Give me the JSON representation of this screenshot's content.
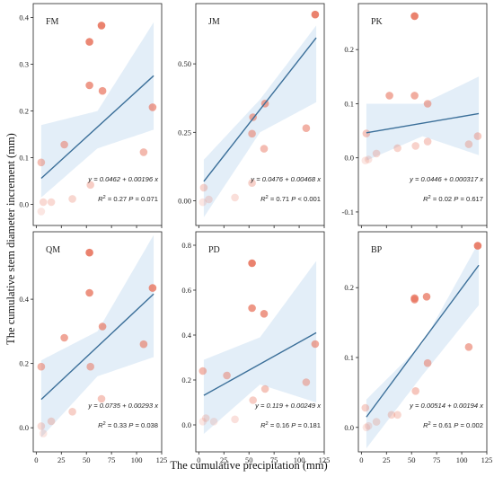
{
  "chart_data": {
    "type": "scatter",
    "xlabel": "The cumulative precipitation (mm)",
    "ylabel": "The cumulative stem diameter increment (mm)",
    "colors": {
      "point": "#e8745e",
      "band": "#a9cbe8",
      "line": "#3b6f99",
      "frame": "#222222"
    },
    "panels": [
      {
        "label": "FM",
        "xlim": [
          -3,
          125
        ],
        "ylim": [
          -0.045,
          0.43
        ],
        "xticks": [
          0,
          25,
          50,
          75,
          100,
          125
        ],
        "yticks": [
          0.0,
          0.1,
          0.2,
          0.3,
          0.4
        ],
        "ytick_labels": [
          "0.0",
          "0.1",
          "0.2",
          "0.3",
          "0.4"
        ],
        "show_xtick_labels": false,
        "points": [
          {
            "x": 5,
            "y": 0.09
          },
          {
            "x": 5,
            "y": -0.015
          },
          {
            "x": 7,
            "y": 0.005
          },
          {
            "x": 15,
            "y": 0.005
          },
          {
            "x": 28,
            "y": 0.128
          },
          {
            "x": 36,
            "y": 0.012
          },
          {
            "x": 53,
            "y": 0.348
          },
          {
            "x": 53,
            "y": 0.255
          },
          {
            "x": 54,
            "y": 0.042
          },
          {
            "x": 65,
            "y": 0.383
          },
          {
            "x": 66,
            "y": 0.243
          },
          {
            "x": 107,
            "y": 0.112
          },
          {
            "x": 116,
            "y": 0.208
          }
        ],
        "fit": {
          "intercept": 0.0462,
          "slope": 0.00196,
          "x_range": [
            5,
            117
          ],
          "ci_low": [
            0.015,
            0.12,
            0.16
          ],
          "ci_high": [
            0.17,
            0.2,
            0.39
          ]
        },
        "equation": "y = 0.0462 + 0.00196 x",
        "r2": "0.27",
        "p": "0.071"
      },
      {
        "label": "JM",
        "xlim": [
          -3,
          125
        ],
        "ylim": [
          -0.09,
          0.72
        ],
        "xticks": [
          0,
          25,
          50,
          75,
          100,
          125
        ],
        "yticks": [
          0.0,
          0.25,
          0.5
        ],
        "ytick_labels": [
          "0.00",
          "0.25",
          "0.50"
        ],
        "show_xtick_labels": false,
        "points": [
          {
            "x": 5,
            "y": 0.048
          },
          {
            "x": 4,
            "y": -0.005
          },
          {
            "x": 10,
            "y": 0.005
          },
          {
            "x": 36,
            "y": 0.012
          },
          {
            "x": 53,
            "y": 0.065
          },
          {
            "x": 53,
            "y": 0.245
          },
          {
            "x": 54,
            "y": 0.305
          },
          {
            "x": 65,
            "y": 0.19
          },
          {
            "x": 66,
            "y": 0.355
          },
          {
            "x": 107,
            "y": 0.265
          },
          {
            "x": 116,
            "y": 0.68
          }
        ],
        "fit": {
          "intercept": 0.0476,
          "slope": 0.00468,
          "x_range": [
            5,
            117
          ],
          "ci_low": [
            -0.06,
            0.25,
            0.36
          ],
          "ci_high": [
            0.15,
            0.37,
            0.64
          ]
        },
        "equation": "y = 0.0476 + 0.00468 x",
        "r2": "0.71",
        "p": "< 0.001"
      },
      {
        "label": "PK",
        "xlim": [
          -3,
          125
        ],
        "ylim": [
          -0.125,
          0.285
        ],
        "xticks": [
          0,
          25,
          50,
          75,
          100,
          125
        ],
        "yticks": [
          -0.1,
          0.0,
          0.1,
          0.2
        ],
        "ytick_labels": [
          "-0.1",
          "0.0",
          "0.1",
          "0.2"
        ],
        "show_xtick_labels": false,
        "points": [
          {
            "x": 5,
            "y": 0.045
          },
          {
            "x": 4,
            "y": -0.005
          },
          {
            "x": 7,
            "y": -0.003
          },
          {
            "x": 15,
            "y": 0.008
          },
          {
            "x": 28,
            "y": 0.115
          },
          {
            "x": 36,
            "y": 0.018
          },
          {
            "x": 53,
            "y": 0.262
          },
          {
            "x": 53,
            "y": 0.115
          },
          {
            "x": 54,
            "y": 0.022
          },
          {
            "x": 66,
            "y": 0.1
          },
          {
            "x": 66,
            "y": 0.03
          },
          {
            "x": 107,
            "y": 0.025
          },
          {
            "x": 116,
            "y": 0.04
          }
        ],
        "fit": {
          "intercept": 0.0446,
          "slope": 0.000317,
          "x_range": [
            5,
            117
          ],
          "ci_low": [
            -0.005,
            0.04,
            0.005
          ],
          "ci_high": [
            0.1,
            0.1,
            0.15
          ]
        },
        "equation": "y = 0.0446 + 0.000317 x",
        "r2": "0.02",
        "p": "0.617"
      },
      {
        "label": "QM",
        "xlim": [
          -3,
          125
        ],
        "ylim": [
          -0.075,
          0.61
        ],
        "xticks": [
          0,
          25,
          50,
          75,
          100,
          125
        ],
        "yticks": [
          0.0,
          0.2,
          0.4
        ],
        "ytick_labels": [
          "0.0",
          "0.2",
          "0.4"
        ],
        "show_xtick_labels": true,
        "points": [
          {
            "x": 5,
            "y": 0.19
          },
          {
            "x": 5,
            "y": 0.005
          },
          {
            "x": 7,
            "y": -0.018
          },
          {
            "x": 15,
            "y": 0.02
          },
          {
            "x": 28,
            "y": 0.28
          },
          {
            "x": 36,
            "y": 0.05
          },
          {
            "x": 53,
            "y": 0.545
          },
          {
            "x": 53,
            "y": 0.42
          },
          {
            "x": 54,
            "y": 0.19
          },
          {
            "x": 65,
            "y": 0.09
          },
          {
            "x": 66,
            "y": 0.315
          },
          {
            "x": 107,
            "y": 0.26
          },
          {
            "x": 116,
            "y": 0.435
          }
        ],
        "fit": {
          "intercept": 0.0735,
          "slope": 0.00293,
          "x_range": [
            5,
            117
          ],
          "ci_low": [
            -0.03,
            0.16,
            0.22
          ],
          "ci_high": [
            0.21,
            0.3,
            0.6
          ]
        },
        "equation": "y = 0.0735 + 0.00293 x",
        "r2": "0.33",
        "p": "0.038"
      },
      {
        "label": "PD",
        "xlim": [
          -3,
          125
        ],
        "ylim": [
          -0.12,
          0.86
        ],
        "xticks": [
          0,
          25,
          50,
          75,
          100,
          125
        ],
        "yticks": [
          0.0,
          0.2,
          0.4,
          0.6,
          0.8
        ],
        "ytick_labels": [
          "0.0",
          "0.2",
          "0.4",
          "0.6",
          "0.8"
        ],
        "show_xtick_labels": true,
        "points": [
          {
            "x": 4,
            "y": 0.24
          },
          {
            "x": 4,
            "y": 0.015
          },
          {
            "x": 7,
            "y": 0.03
          },
          {
            "x": 15,
            "y": 0.015
          },
          {
            "x": 28,
            "y": 0.22
          },
          {
            "x": 36,
            "y": 0.025
          },
          {
            "x": 53,
            "y": 0.72
          },
          {
            "x": 53,
            "y": 0.52
          },
          {
            "x": 54,
            "y": 0.11
          },
          {
            "x": 65,
            "y": 0.495
          },
          {
            "x": 66,
            "y": 0.16
          },
          {
            "x": 107,
            "y": 0.19
          },
          {
            "x": 116,
            "y": 0.36
          }
        ],
        "fit": {
          "intercept": 0.119,
          "slope": 0.00249,
          "x_range": [
            5,
            117
          ],
          "ci_low": [
            -0.04,
            0.18,
            0.1
          ],
          "ci_high": [
            0.29,
            0.39,
            0.73
          ]
        },
        "equation": "y = 0.119 + 0.00249 x",
        "r2": "0.16",
        "p": "0.181"
      },
      {
        "label": "BP",
        "xlim": [
          -3,
          125
        ],
        "ylim": [
          -0.035,
          0.28
        ],
        "xticks": [
          0,
          25,
          50,
          75,
          100,
          125
        ],
        "yticks": [
          0.0,
          0.1,
          0.2
        ],
        "ytick_labels": [
          "0.0",
          "0.1",
          "0.2"
        ],
        "show_xtick_labels": true,
        "points": [
          {
            "x": 4,
            "y": 0.028
          },
          {
            "x": 5,
            "y": 0.0
          },
          {
            "x": 7,
            "y": 0.002
          },
          {
            "x": 15,
            "y": 0.008
          },
          {
            "x": 30,
            "y": 0.018
          },
          {
            "x": 36,
            "y": 0.018
          },
          {
            "x": 53,
            "y": 0.185
          },
          {
            "x": 53,
            "y": 0.183
          },
          {
            "x": 54,
            "y": 0.052
          },
          {
            "x": 65,
            "y": 0.187
          },
          {
            "x": 66,
            "y": 0.092
          },
          {
            "x": 107,
            "y": 0.115
          },
          {
            "x": 116,
            "y": 0.26
          }
        ],
        "fit": {
          "intercept": 0.00514,
          "slope": 0.00194,
          "x_range": [
            5,
            117
          ],
          "ci_low": [
            -0.03,
            0.075,
            0.175
          ],
          "ci_high": [
            0.04,
            0.12,
            0.265
          ]
        },
        "equation": "y = 0.00514 + 0.00194 x",
        "r2": "0.61",
        "p": "0.002"
      }
    ]
  }
}
